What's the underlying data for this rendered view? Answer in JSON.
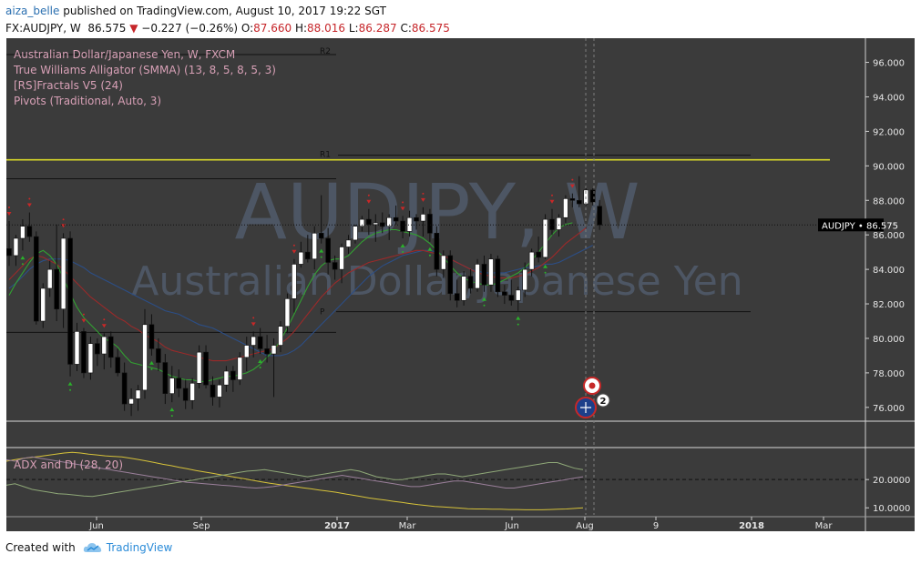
{
  "header": {
    "user": "aiza_belle",
    "published_text": "published on TradingView.com, August 10, 2017 19:22 SGT",
    "symbol_line": "FX:AUDJPY, W",
    "last": "86.575",
    "change_arrow": "▼",
    "change": "−0.227 (−0.26%)",
    "o_label": "O:",
    "o_value": "87.660",
    "h_label": "H:",
    "h_value": "88.016",
    "l_label": "L:",
    "l_value": "86.287",
    "c_label": "C:",
    "c_value": "86.575"
  },
  "studies": [
    "Australian Dollar/Japanese Yen, W, FXCM",
    "True Williams Alligator (SMMA) (13, 8, 5, 8, 5, 3)",
    "[RS]Fractals V5 (24)",
    "Pivots (Traditional, Auto, 3)"
  ],
  "watermark": {
    "ticker": "AUDJPY, W",
    "name": "Australian Dollar/Japanese Yen"
  },
  "price_label": {
    "symbol": "AUDJPY",
    "value": "86.575"
  },
  "pivot_labels": {
    "r2": "R2",
    "r1": "R1",
    "p": "P"
  },
  "event_badge_count": "2",
  "adx_title": "ADX and DI (28, 20)",
  "footer": {
    "created_with": "Created with",
    "brand": "TradingView"
  },
  "colors": {
    "background": "#3b3b3b",
    "up_candle": "#ffffff",
    "down_candle": "#000000",
    "jaw": "#2c4e86",
    "teeth": "#9a2a2a",
    "lips": "#32a032",
    "resistance_line": "#d7d72a",
    "fractal_up": "#c82828",
    "fractal_down": "#2bb02b",
    "adx": "#d6c23a",
    "di_plus": "#8fa878",
    "di_minus": "#9a7f9a"
  },
  "chart_data": [
    {
      "type": "candlestick",
      "title": "Australian Dollar/Japanese Yen, W, FXCM",
      "ylim": [
        75.2,
        97.4
      ],
      "y_ticks": [
        "76.000",
        "78.000",
        "80.000",
        "82.000",
        "84.000",
        "86.000",
        "88.000",
        "90.000",
        "92.000",
        "94.000",
        "96.000"
      ],
      "x_ticks": [
        "Jun",
        "Sep",
        "2017",
        "Mar",
        "Jun",
        "Aug",
        "9",
        "2018",
        "Mar"
      ],
      "last_price": 86.575,
      "horizontal_levels": [
        {
          "name": "resistance",
          "value": 90.35
        },
        {
          "name": "R1",
          "value": 90.62
        },
        {
          "name": "level",
          "value": 89.25
        },
        {
          "name": "level",
          "value": 80.35
        },
        {
          "name": "P",
          "value": 81.55
        },
        {
          "name": "R2",
          "value": 96.45
        }
      ],
      "candles": [
        [
          85.2,
          86.8,
          84.2,
          84.8
        ],
        [
          84.8,
          86.0,
          84.2,
          85.8
        ],
        [
          85.8,
          86.9,
          85.1,
          86.5
        ],
        [
          86.5,
          87.3,
          85.6,
          85.9
        ],
        [
          85.9,
          86.2,
          80.8,
          81.0
        ],
        [
          81.0,
          83.2,
          80.6,
          82.9
        ],
        [
          82.9,
          84.5,
          82.4,
          84.0
        ],
        [
          84.0,
          86.6,
          81.0,
          81.7
        ],
        [
          81.7,
          86.1,
          80.6,
          85.8
        ],
        [
          85.8,
          86.2,
          77.8,
          78.5
        ],
        [
          78.5,
          80.9,
          78.1,
          80.4
        ],
        [
          80.4,
          80.6,
          77.7,
          78.0
        ],
        [
          78.0,
          80.1,
          77.6,
          79.7
        ],
        [
          79.7,
          80.0,
          78.4,
          79.1
        ],
        [
          79.1,
          80.3,
          78.2,
          80.1
        ],
        [
          80.1,
          80.4,
          78.3,
          78.9
        ],
        [
          78.9,
          79.4,
          77.8,
          78.0
        ],
        [
          78.0,
          78.6,
          75.8,
          76.2
        ],
        [
          76.2,
          77.1,
          75.5,
          76.5
        ],
        [
          76.5,
          77.3,
          75.8,
          77.0
        ],
        [
          77.0,
          81.7,
          76.5,
          80.8
        ],
        [
          80.8,
          81.4,
          79.0,
          79.4
        ],
        [
          79.4,
          80.0,
          78.1,
          78.6
        ],
        [
          78.6,
          79.1,
          76.2,
          76.8
        ],
        [
          76.8,
          78.4,
          76.3,
          77.7
        ],
        [
          77.7,
          78.2,
          76.6,
          77.1
        ],
        [
          77.1,
          77.6,
          75.9,
          76.4
        ],
        [
          76.4,
          77.7,
          75.9,
          77.4
        ],
        [
          77.4,
          79.6,
          77.1,
          79.2
        ],
        [
          79.2,
          79.6,
          77.1,
          77.3
        ],
        [
          77.3,
          77.8,
          76.1,
          76.6
        ],
        [
          76.6,
          77.6,
          76.0,
          77.3
        ],
        [
          77.3,
          78.4,
          76.9,
          78.1
        ],
        [
          78.1,
          78.4,
          76.9,
          77.6
        ],
        [
          77.6,
          79.2,
          77.3,
          78.9
        ],
        [
          78.9,
          80.1,
          78.1,
          79.6
        ],
        [
          79.6,
          80.4,
          78.9,
          80.1
        ],
        [
          80.1,
          80.6,
          79.1,
          79.4
        ],
        [
          79.4,
          80.2,
          78.6,
          79.1
        ],
        [
          79.1,
          80.0,
          76.6,
          79.6
        ],
        [
          79.6,
          81.0,
          79.2,
          80.7
        ],
        [
          80.7,
          82.6,
          80.3,
          82.3
        ],
        [
          82.3,
          84.6,
          81.5,
          84.3
        ],
        [
          84.3,
          85.6,
          84.1,
          85.0
        ],
        [
          85.0,
          86.0,
          84.4,
          84.6
        ],
        [
          84.6,
          86.5,
          84.0,
          86.1
        ],
        [
          86.1,
          88.3,
          85.5,
          85.8
        ],
        [
          85.8,
          86.4,
          83.7,
          84.4
        ],
        [
          84.4,
          84.8,
          83.4,
          84.0
        ],
        [
          84.0,
          85.5,
          83.2,
          85.3
        ],
        [
          85.3,
          86.0,
          84.9,
          85.7
        ],
        [
          85.7,
          86.6,
          85.5,
          86.5
        ],
        [
          86.5,
          87.1,
          86.2,
          86.9
        ],
        [
          86.9,
          87.5,
          86.0,
          86.6
        ],
        [
          86.6,
          87.2,
          85.6,
          86.7
        ],
        [
          86.7,
          87.3,
          86.1,
          86.5
        ],
        [
          86.5,
          87.2,
          85.7,
          87.0
        ],
        [
          87.0,
          87.7,
          86.6,
          86.8
        ],
        [
          86.8,
          87.1,
          85.8,
          86.2
        ],
        [
          86.2,
          87.4,
          85.9,
          87.0
        ],
        [
          87.0,
          87.2,
          86.3,
          86.8
        ],
        [
          86.8,
          87.6,
          85.9,
          87.2
        ],
        [
          87.2,
          87.5,
          85.6,
          86.1
        ],
        [
          86.1,
          86.5,
          83.6,
          84.0
        ],
        [
          84.0,
          85.1,
          83.5,
          84.8
        ],
        [
          84.8,
          85.1,
          82.2,
          82.6
        ],
        [
          82.6,
          83.4,
          81.8,
          82.2
        ],
        [
          82.2,
          83.9,
          81.9,
          83.6
        ],
        [
          83.6,
          84.0,
          82.6,
          82.9
        ],
        [
          82.9,
          84.6,
          82.7,
          84.3
        ],
        [
          84.3,
          84.8,
          82.7,
          83.1
        ],
        [
          83.1,
          84.9,
          82.7,
          84.6
        ],
        [
          84.6,
          84.8,
          82.4,
          82.7
        ],
        [
          82.7,
          83.1,
          82.0,
          82.5
        ],
        [
          82.5,
          83.4,
          81.9,
          82.2
        ],
        [
          82.2,
          83.0,
          81.6,
          82.8
        ],
        [
          82.8,
          84.4,
          82.4,
          84.0
        ],
        [
          84.0,
          85.2,
          83.6,
          85.0
        ],
        [
          85.0,
          85.9,
          84.4,
          84.7
        ],
        [
          84.7,
          87.2,
          84.6,
          86.9
        ],
        [
          86.9,
          87.5,
          86.0,
          86.3
        ],
        [
          86.3,
          87.2,
          85.9,
          87.0
        ],
        [
          87.0,
          88.3,
          86.7,
          88.1
        ],
        [
          88.1,
          88.4,
          87.6,
          88.0
        ],
        [
          88.0,
          89.4,
          87.6,
          87.8
        ],
        [
          87.8,
          88.8,
          87.7,
          88.6
        ],
        [
          88.6,
          88.7,
          87.7,
          87.9
        ],
        [
          87.66,
          88.016,
          86.287,
          86.575
        ]
      ],
      "fractals_up_index": [
        0,
        3,
        8,
        11,
        14,
        36,
        42,
        53,
        58,
        61,
        80,
        83
      ],
      "fractals_down_index": [
        2,
        9,
        21,
        24,
        37,
        46,
        58,
        62,
        70,
        75,
        79
      ],
      "jaw": [
        82.9,
        83.2,
        83.6,
        84.0,
        84.3,
        84.5,
        84.6,
        84.6,
        84.6,
        84.5,
        84.3,
        84.1,
        83.8,
        83.6,
        83.4,
        83.2,
        83.0,
        82.8,
        82.6,
        82.4,
        82.2,
        82.0,
        81.8,
        81.6,
        81.5,
        81.4,
        81.2,
        81.0,
        80.8,
        80.7,
        80.6,
        80.4,
        80.2,
        80.0,
        79.8,
        79.6,
        79.4,
        79.2,
        79.0,
        79.0,
        79.0,
        79.1,
        79.3,
        79.6,
        80.0,
        80.4,
        80.8,
        81.2,
        81.6,
        82.0,
        82.4,
        82.8,
        83.2,
        83.6,
        83.9,
        84.2,
        84.4,
        84.6,
        84.8,
        84.9,
        85.0,
        85.1,
        85.1,
        85.0,
        84.8,
        84.6,
        84.4,
        84.2,
        84.0,
        83.9,
        83.8,
        83.8,
        83.8,
        83.8,
        83.9,
        84.0,
        84.1,
        84.1,
        84.2,
        84.3,
        84.3,
        84.4,
        84.6,
        84.8,
        85.0,
        85.2,
        85.4
      ],
      "teeth": [
        83.4,
        83.8,
        84.2,
        84.6,
        84.8,
        84.7,
        84.5,
        84.3,
        84.0,
        83.6,
        83.2,
        82.8,
        82.4,
        82.1,
        81.8,
        81.5,
        81.2,
        81.0,
        80.7,
        80.5,
        80.2,
        80.0,
        79.8,
        79.5,
        79.3,
        79.2,
        79.1,
        79.0,
        78.9,
        78.8,
        78.7,
        78.7,
        78.7,
        78.8,
        78.9,
        79.0,
        79.1,
        79.2,
        79.3,
        79.4,
        79.7,
        80.0,
        80.4,
        80.9,
        81.4,
        81.9,
        82.4,
        82.8,
        83.2,
        83.5,
        83.8,
        84.0,
        84.2,
        84.4,
        84.5,
        84.6,
        84.7,
        84.8,
        84.9,
        85.0,
        85.1,
        85.1,
        85.0,
        84.9,
        84.8,
        84.6,
        84.4,
        84.2,
        84.0,
        83.8,
        83.7,
        83.6,
        83.5,
        83.5,
        83.5,
        83.6,
        83.7,
        83.9,
        84.1,
        84.4,
        84.7,
        85.1,
        85.5,
        85.8,
        86.1,
        86.4
      ],
      "lips": [
        82.5,
        83.2,
        83.8,
        84.4,
        84.9,
        85.1,
        84.8,
        84.3,
        83.5,
        82.6,
        81.8,
        81.2,
        80.8,
        80.4,
        80.0,
        79.8,
        79.5,
        79.0,
        78.6,
        78.5,
        78.4,
        78.3,
        78.2,
        78.0,
        77.8,
        77.7,
        77.6,
        77.6,
        77.5,
        77.5,
        77.6,
        77.7,
        77.8,
        77.8,
        77.9,
        78.0,
        78.2,
        78.5,
        78.9,
        79.3,
        79.9,
        80.6,
        81.4,
        82.2,
        83.0,
        83.7,
        84.2,
        84.5,
        84.6,
        84.6,
        84.8,
        85.2,
        85.6,
        85.9,
        86.1,
        86.2,
        86.3,
        86.3,
        86.2,
        86.1,
        86.0,
        85.8,
        85.5,
        85.1,
        84.7,
        84.2,
        83.8,
        83.5,
        83.3,
        83.2,
        83.1,
        83.1,
        83.2,
        83.4,
        83.6,
        83.8,
        84.1,
        84.5,
        85.0,
        85.5,
        86.0,
        86.4,
        86.6,
        86.7
      ]
    },
    {
      "type": "line",
      "title": "ADX and DI (28, 20)",
      "ylim": [
        7.5,
        31
      ],
      "y_ticks": [
        "10.0000",
        "20.0000"
      ],
      "threshold": 20,
      "series": [
        {
          "values": [
            26.5,
            27.0,
            27.5,
            27.8,
            28.2,
            28.6,
            29.0,
            29.4,
            29.6,
            29.4,
            29.0,
            28.7,
            28.4,
            28.2,
            28.0,
            27.6,
            27.1,
            26.6,
            26.0,
            25.4,
            24.9,
            24.3,
            23.8,
            23.2,
            22.7,
            22.2,
            21.7,
            21.2,
            20.7,
            20.2,
            19.7,
            19.2,
            18.7,
            18.3,
            17.9,
            17.5,
            17.1,
            16.7,
            16.3,
            15.9,
            15.5,
            15.0,
            14.5,
            14.0,
            13.5,
            13.1,
            12.7,
            12.3,
            11.9,
            11.5,
            11.1,
            10.8,
            10.5,
            10.3,
            10.1,
            9.9,
            9.7,
            9.6,
            9.6,
            9.5,
            9.5,
            9.4,
            9.4,
            9.3,
            9.3,
            9.3,
            9.4,
            9.5,
            9.6,
            9.8,
            10.0
          ]
        },
        {
          "values": [
            18.0,
            18.5,
            17.5,
            16.5,
            16.0,
            15.5,
            15.0,
            14.8,
            14.5,
            14.2,
            14.0,
            14.5,
            15.0,
            15.5,
            16.0,
            16.5,
            17.0,
            17.5,
            18.0,
            18.5,
            19.0,
            19.5,
            20.0,
            20.5,
            21.0,
            21.5,
            22.0,
            22.5,
            23.0,
            23.2,
            23.5,
            23.0,
            22.5,
            22.0,
            21.5,
            21.0,
            21.5,
            22.0,
            22.5,
            23.0,
            23.5,
            23.0,
            22.0,
            21.0,
            20.5,
            20.0,
            20.0,
            20.5,
            21.0,
            21.5,
            22.0,
            22.0,
            21.5,
            21.0,
            21.5,
            22.0,
            22.5,
            23.0,
            23.5,
            24.0,
            24.5,
            25.0,
            25.5,
            26.0,
            26.0,
            25.0,
            24.0,
            23.5
          ]
        },
        {
          "values": [
            27.0,
            26.5,
            27.5,
            28.0,
            27.5,
            27.0,
            26.5,
            26.0,
            25.5,
            25.0,
            24.5,
            24.0,
            23.5,
            23.0,
            22.5,
            22.0,
            21.5,
            21.0,
            20.5,
            20.0,
            19.5,
            19.0,
            18.8,
            18.5,
            18.3,
            18.0,
            17.8,
            17.5,
            17.2,
            17.0,
            17.2,
            17.5,
            18.0,
            18.5,
            19.0,
            19.5,
            20.0,
            20.5,
            21.0,
            21.5,
            21.0,
            20.5,
            20.0,
            19.5,
            19.0,
            18.5,
            18.0,
            17.5,
            17.5,
            18.0,
            18.5,
            19.0,
            19.5,
            19.5,
            19.0,
            18.5,
            18.0,
            17.5,
            17.0,
            17.0,
            17.5,
            18.0,
            18.5,
            19.0,
            19.5,
            20.0,
            20.5,
            21.0
          ]
        }
      ]
    }
  ]
}
